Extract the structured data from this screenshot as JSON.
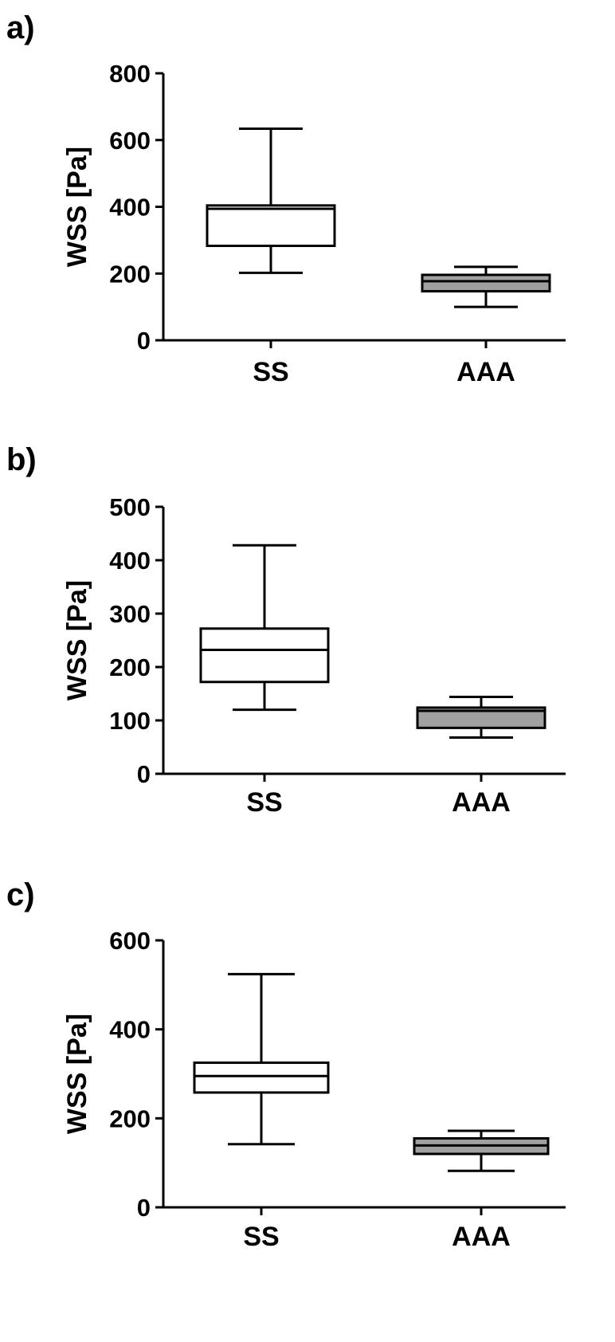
{
  "figure": {
    "panels": [
      {
        "label": "a)"
      },
      {
        "label": "b)"
      },
      {
        "label": "c)"
      }
    ]
  },
  "chart_data": [
    {
      "type": "box",
      "panel": "a)",
      "ylabel": "WSS [Pa]",
      "ylim": [
        0,
        800
      ],
      "yticks": [
        0,
        200,
        400,
        600,
        800
      ],
      "categories": [
        "SS",
        "AAA"
      ],
      "boxes": [
        {
          "category": "SS",
          "min": 202,
          "q1": 283,
          "median": 394,
          "q3": 404,
          "max": 634,
          "fill": "#ffffff"
        },
        {
          "category": "AAA",
          "min": 100,
          "q1": 147,
          "median": 177,
          "q3": 196,
          "max": 220,
          "fill": "#a0a0a0"
        }
      ],
      "grid": false,
      "legend": "none"
    },
    {
      "type": "box",
      "panel": "b)",
      "ylabel": "WSS [Pa]",
      "ylim": [
        0,
        500
      ],
      "yticks": [
        0,
        100,
        200,
        300,
        400,
        500
      ],
      "categories": [
        "SS",
        "AAA"
      ],
      "boxes": [
        {
          "category": "SS",
          "min": 120,
          "q1": 172,
          "median": 232,
          "q3": 272,
          "max": 428,
          "fill": "#ffffff"
        },
        {
          "category": "AAA",
          "min": 68,
          "q1": 86,
          "median": 118,
          "q3": 124,
          "max": 144,
          "fill": "#a0a0a0"
        }
      ],
      "grid": false,
      "legend": "none"
    },
    {
      "type": "box",
      "panel": "c)",
      "ylabel": "WSS [Pa]",
      "ylim": [
        0,
        600
      ],
      "yticks": [
        0,
        200,
        400,
        600
      ],
      "categories": [
        "SS",
        "AAA"
      ],
      "boxes": [
        {
          "category": "SS",
          "min": 142,
          "q1": 258,
          "median": 295,
          "q3": 325,
          "max": 524,
          "fill": "#ffffff"
        },
        {
          "category": "AAA",
          "min": 82,
          "q1": 120,
          "median": 139,
          "q3": 155,
          "max": 172,
          "fill": "#a0a0a0"
        }
      ],
      "grid": false,
      "legend": "none"
    }
  ]
}
